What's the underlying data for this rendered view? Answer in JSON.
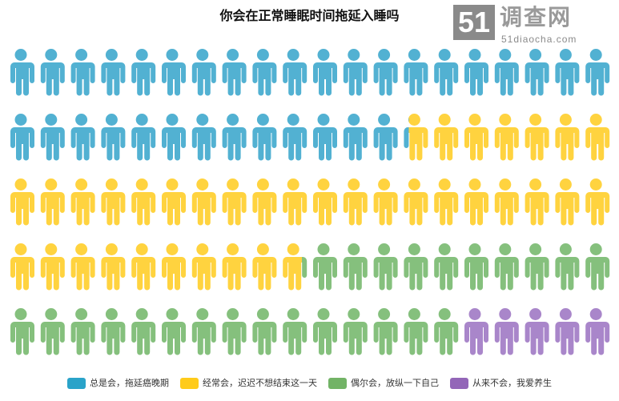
{
  "chart_data": {
    "type": "pictograph",
    "title": "你会在正常睡眠时间拖延入睡吗",
    "units_total": 100,
    "series": [
      {
        "name": "总是会，拖延癌晚期",
        "value": 33.2,
        "icon_color": "#52b1d2",
        "legend_color": "#2aa3c9"
      },
      {
        "name": "经常会，迟迟不想结束这一天",
        "value": 36.6,
        "icon_color": "#ffd33f",
        "legend_color": "#ffcb1a"
      },
      {
        "name": "偶尔会，放纵一下自己",
        "value": 25.2,
        "icon_color": "#85c07d",
        "legend_color": "#72b366"
      },
      {
        "name": "从来不会，我爱养生",
        "value": 5.0,
        "icon_color": "#a986ca",
        "legend_color": "#9366b8"
      }
    ],
    "legend": "bottom"
  },
  "logo": {
    "number": "51",
    "name": "调查网",
    "url": "51diaocha.com"
  }
}
